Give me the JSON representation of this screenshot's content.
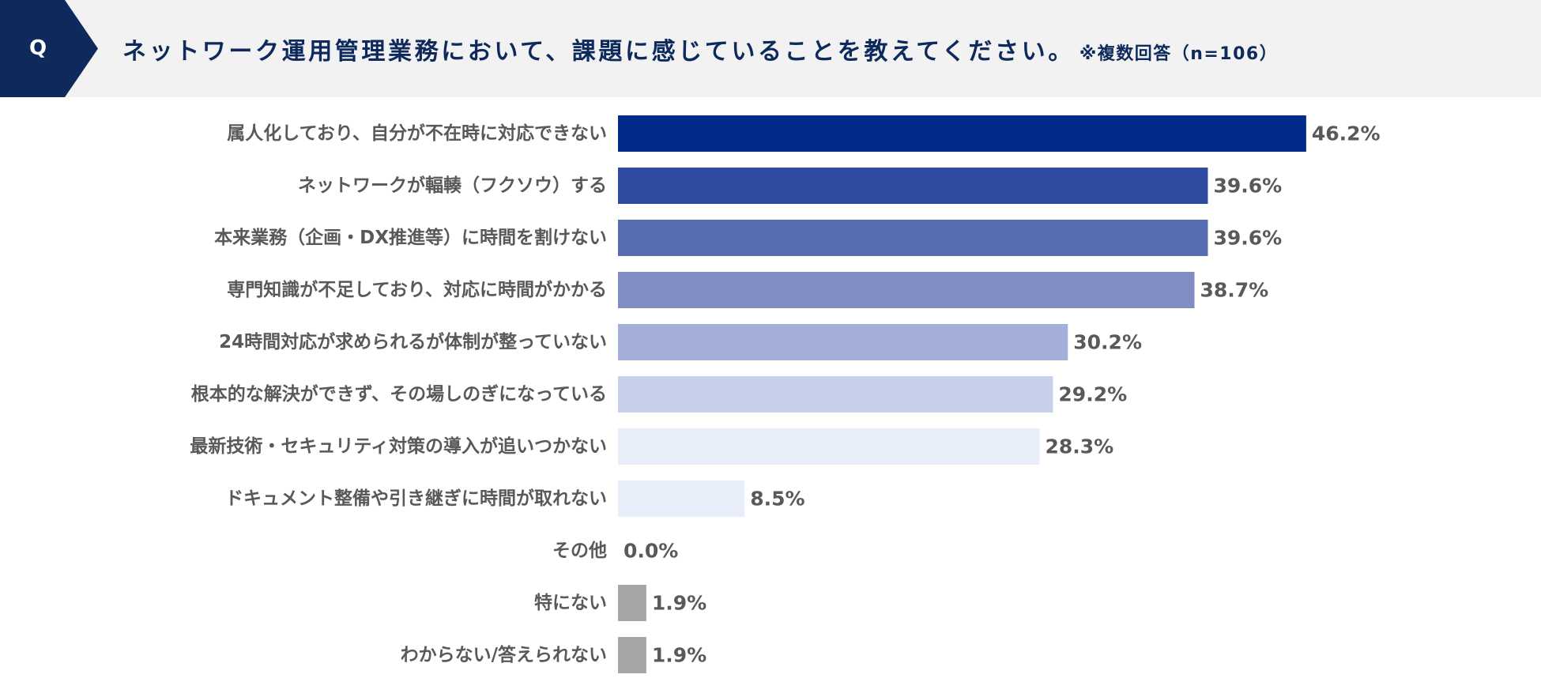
{
  "header": {
    "badge": "Q",
    "question": "ネットワーク運用管理業務において、課題に感じていることを教えてください。",
    "note": "※複数回答（n=106）"
  },
  "chart_data": {
    "type": "bar",
    "orientation": "horizontal",
    "title": "ネットワーク運用管理業務において、課題に感じていることを教えてください。",
    "note": "※複数回答（n=106）",
    "categories": [
      "属人化しており、自分が不在時に対応できない",
      "ネットワークが輻輳（フクソウ）する",
      "本来業務（企画・DX推進等）に時間を割けない",
      "専門知識が不足しており、対応に時間がかかる",
      "24時間対応が求められるが体制が整っていない",
      "根本的な解決ができず、その場しのぎになっている",
      "最新技術・セキュリティ対策の導入が追いつかない",
      "ドキュメント整備や引き継ぎに時間が取れない",
      "その他",
      "特にない",
      "わからない/答えられない"
    ],
    "values": [
      46.2,
      39.6,
      39.6,
      38.7,
      30.2,
      29.2,
      28.3,
      8.5,
      0.0,
      1.9,
      1.9
    ],
    "value_labels": [
      "46.2%",
      "39.6%",
      "39.6%",
      "38.7%",
      "30.2%",
      "29.2%",
      "28.3%",
      "8.5%",
      "0.0%",
      "1.9%",
      "1.9%"
    ],
    "bar_colors": [
      "#012a8c",
      "#2f4ba0",
      "#566db2",
      "#7f8dc3",
      "#a3afd9",
      "#c6d0ea",
      "#e7eef9",
      "#e7eef9",
      "#a6a6a6",
      "#a6a6a6",
      "#a6a6a6"
    ],
    "label_color": "#595959",
    "xlim": [
      0,
      46.2
    ],
    "grid": false,
    "legend": "none"
  },
  "colors": {
    "header_bg": "#f2f2f2",
    "badge_bg": "#0e2a5c",
    "title_text": "#0e2a5c"
  }
}
